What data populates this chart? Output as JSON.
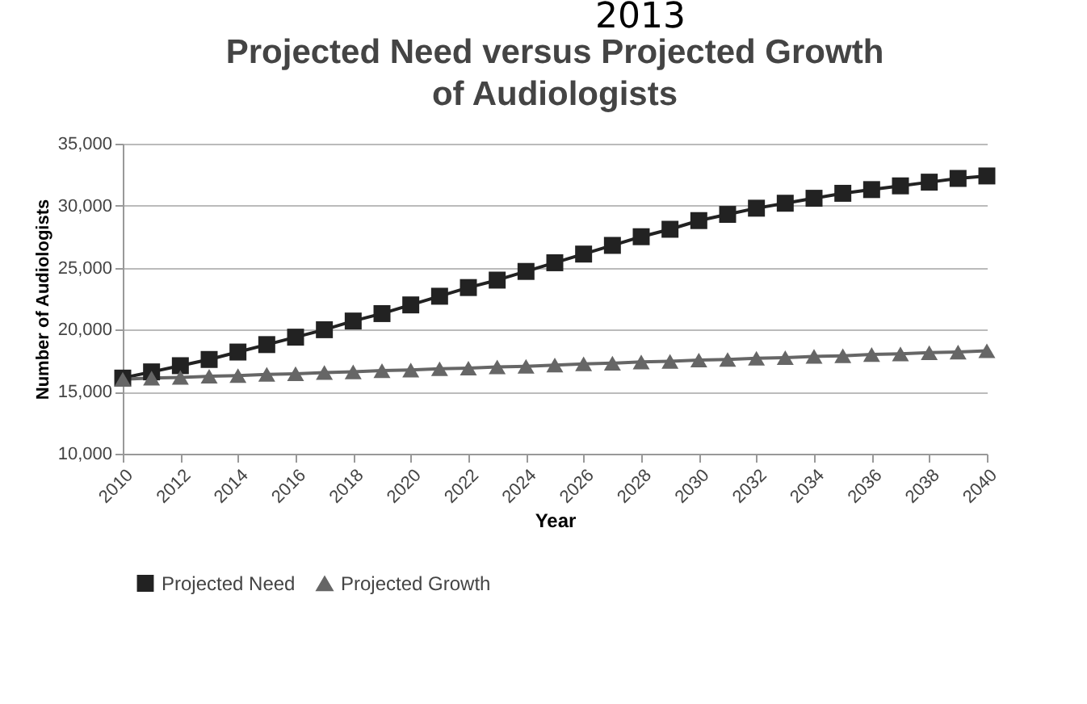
{
  "chart_data": {
    "type": "line",
    "title": "Projected Need versus Projected Growth of Audiologists",
    "xlabel": "Year",
    "ylabel": "Number of Audiologists",
    "annotations": [
      "2013"
    ],
    "x": [
      2010,
      2011,
      2012,
      2013,
      2014,
      2015,
      2016,
      2017,
      2018,
      2019,
      2020,
      2021,
      2022,
      2023,
      2024,
      2025,
      2026,
      2027,
      2028,
      2029,
      2030,
      2031,
      2032,
      2033,
      2034,
      2035,
      2036,
      2037,
      2038,
      2039,
      2040
    ],
    "series": [
      {
        "name": "Projected Need",
        "color": "#222222",
        "marker": "square",
        "values": [
          16100,
          16600,
          17100,
          17600,
          18200,
          18800,
          19400,
          20000,
          20700,
          21300,
          22000,
          22700,
          23400,
          24000,
          24700,
          25400,
          26100,
          26800,
          27500,
          28100,
          28800,
          29300,
          29800,
          30200,
          30600,
          31000,
          31300,
          31600,
          31900,
          32200,
          32400
        ]
      },
      {
        "name": "Projected Growth",
        "color": "#666666",
        "marker": "triangle",
        "values": [
          16000,
          16100,
          16150,
          16250,
          16300,
          16400,
          16450,
          16550,
          16600,
          16700,
          16750,
          16850,
          16900,
          17000,
          17050,
          17150,
          17250,
          17300,
          17400,
          17450,
          17550,
          17600,
          17700,
          17750,
          17850,
          17900,
          18000,
          18050,
          18150,
          18200,
          18300
        ]
      }
    ],
    "xlim": [
      2010,
      2040
    ],
    "xticks": [
      2010,
      2012,
      2014,
      2016,
      2018,
      2020,
      2022,
      2024,
      2026,
      2028,
      2030,
      2032,
      2034,
      2036,
      2038,
      2040
    ],
    "ylim": [
      10000,
      35000
    ],
    "yticks": [
      {
        "value": 10000,
        "label": "10,000"
      },
      {
        "value": 15000,
        "label": "15,000"
      },
      {
        "value": 20000,
        "label": "20,000"
      },
      {
        "value": 25000,
        "label": "25,000"
      },
      {
        "value": 30000,
        "label": "30,000"
      },
      {
        "value": 35000,
        "label": "35,000"
      }
    ],
    "grid": "y",
    "legend": "bottom"
  }
}
